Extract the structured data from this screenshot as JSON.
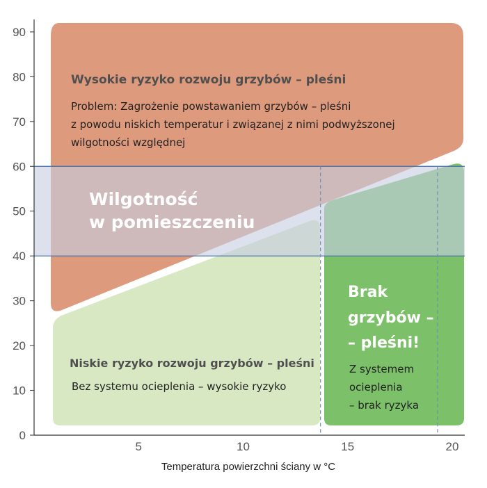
{
  "chart_data": {
    "type": "area",
    "xlabel": "Temperatura powierzchni ściany w °C",
    "ylabel": "",
    "xlim": [
      0,
      20.6
    ],
    "ylim": [
      0,
      92
    ],
    "x_ticks": [
      5,
      10,
      15,
      20
    ],
    "y_ticks": [
      0,
      10,
      20,
      30,
      40,
      50,
      60,
      70,
      80,
      90
    ],
    "grid": false,
    "colors": {
      "high_risk": "#de9a7c",
      "humidity_band": "#c7cfe2",
      "low_risk": "#d8e8c3",
      "no_mold": "#7dc06a",
      "band_line": "#3f6fad",
      "dashed_line": "#6d8fb0"
    },
    "humidity_band": {
      "y_min": 40,
      "y_max": 60
    },
    "dashed_lines_x": [
      13.7,
      19.3
    ],
    "regions": [
      {
        "key": "high_risk",
        "title": "Wysokie ryzyko rozwoju grzybów – pleśni",
        "text": [
          "Problem: Zagrożenie powstawaniem grzybów – pleśni",
          "z powodu niskich temperatur i związanej z nimi podwyższonej",
          "wilgotności względnej"
        ],
        "boundary": [
          [
            0.7,
            91
          ],
          [
            20.4,
            91
          ],
          [
            20.4,
            62
          ],
          [
            0.8,
            26.5
          ]
        ]
      },
      {
        "key": "low_risk",
        "title": "Niskie ryzyko rozwoju grzybów – pleśni",
        "text": [
          "Bez systemu ocieplenia – wysokie ryzyko"
        ],
        "boundary": [
          [
            0.9,
            25
          ],
          [
            13.5,
            47.5
          ],
          [
            13.5,
            2
          ],
          [
            0.9,
            2
          ]
        ]
      },
      {
        "key": "humidity",
        "title_lines": [
          "Wilgotność",
          "w pomieszczeniu"
        ]
      },
      {
        "key": "no_mold",
        "title_lines": [
          "Brak",
          "grzybów –",
          "– pleśni!"
        ],
        "text": [
          "Z systemem",
          "ocieplenia",
          "– brak ryzyka"
        ],
        "boundary": [
          [
            13.9,
            50
          ],
          [
            20.4,
            59.5
          ],
          [
            20.4,
            2
          ],
          [
            13.9,
            2
          ]
        ]
      }
    ]
  }
}
